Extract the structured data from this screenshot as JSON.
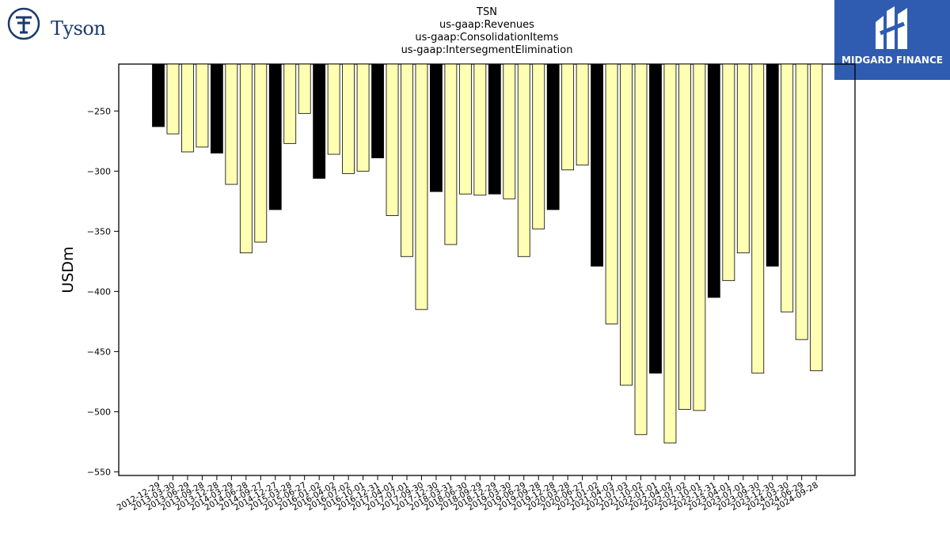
{
  "chart_data": {
    "type": "bar",
    "title_lines": [
      "TSN",
      "us-gaap:Revenues",
      "us-gaap:ConsolidationItems",
      "us-gaap:IntersegmentElimination"
    ],
    "ylabel": "USDm",
    "ylim": [
      -553,
      -211
    ],
    "yticks": [
      -250,
      -300,
      -350,
      -400,
      -450,
      -500,
      -550
    ],
    "categories": [
      "2012-12-29",
      "2013-03-30",
      "2013-06-29",
      "2013-09-28",
      "2013-12-28",
      "2014-03-29",
      "2014-06-28",
      "2014-09-27",
      "2014-12-27",
      "2015-03-28",
      "2015-06-27",
      "2016-01-02",
      "2016-04-02",
      "2016-07-02",
      "2016-10-01",
      "2016-12-31",
      "2017-04-01",
      "2017-07-01",
      "2017-09-30",
      "2017-12-30",
      "2018-03-31",
      "2018-06-30",
      "2018-09-29",
      "2018-12-29",
      "2019-03-30",
      "2019-06-29",
      "2019-09-28",
      "2019-12-28",
      "2020-03-28",
      "2020-06-27",
      "2021-01-02",
      "2021-04-03",
      "2021-07-03",
      "2021-10-02",
      "2022-01-01",
      "2022-04-02",
      "2022-07-02",
      "2022-10-01",
      "2022-12-31",
      "2023-04-01",
      "2023-07-01",
      "2023-09-30",
      "2023-12-30",
      "2024-03-30",
      "2024-06-29",
      "2024-09-28"
    ],
    "values": [
      -263,
      -269,
      -284,
      -280,
      -285,
      -311,
      -368,
      -359,
      -332,
      -277,
      -252,
      -306,
      -286,
      -302,
      -300,
      -289,
      -337,
      -371,
      -415,
      -317,
      -361,
      -319,
      -320,
      -319,
      -323,
      -371,
      -348,
      -332,
      -299,
      -295,
      -379,
      -427,
      -478,
      -519,
      -468,
      -526,
      -498,
      -499,
      -405,
      -391,
      -368,
      -468,
      -379,
      -417,
      -440,
      -466
    ],
    "highlight": [
      true,
      false,
      false,
      false,
      true,
      false,
      false,
      false,
      true,
      false,
      false,
      true,
      false,
      false,
      false,
      true,
      false,
      false,
      false,
      true,
      false,
      false,
      false,
      true,
      false,
      false,
      false,
      true,
      false,
      false,
      true,
      false,
      false,
      false,
      true,
      false,
      false,
      false,
      true,
      false,
      false,
      false,
      true,
      false,
      false,
      false
    ],
    "colors": {
      "highlight": "#000000",
      "normal": "#ffffb3",
      "edge": "#000000"
    }
  },
  "logos": {
    "tyson": {
      "text": "Tyson",
      "color": "#1b3a6b"
    },
    "midgard": {
      "text": "MIDGARD FINANCE",
      "background": "#2f5cb0"
    }
  }
}
